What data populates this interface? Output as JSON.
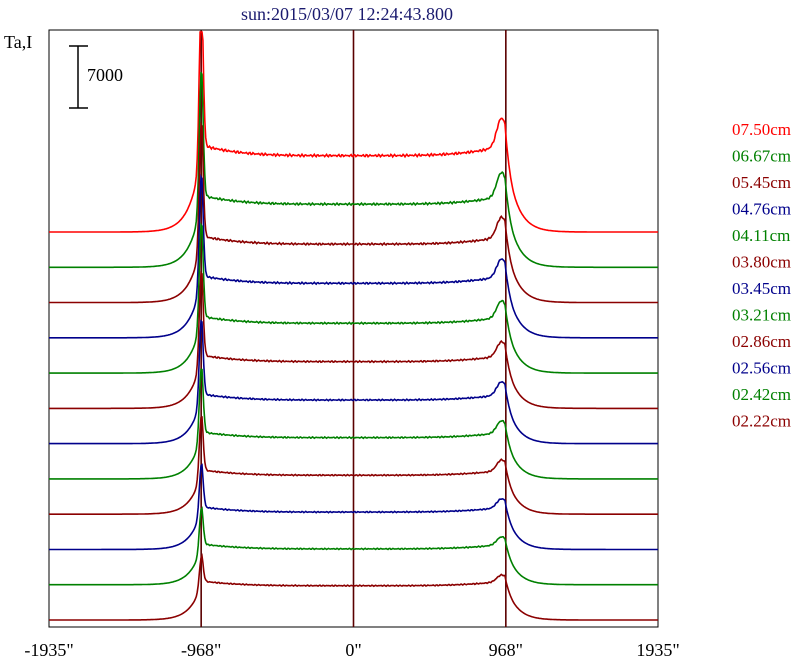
{
  "chart_data": {
    "type": "line",
    "title": "sun:2015/03/07 12:24:43.800",
    "ylabel": "Ta,I",
    "scale_bar_label": "7000",
    "xlim": [
      -1935,
      1935
    ],
    "x_tick_labels": [
      "-1935\"",
      "-968\"",
      "0\"",
      "968\"",
      "1935\""
    ],
    "x_ticks": [
      -1935,
      -968,
      0,
      968,
      1935
    ],
    "vertical_lines_at": [
      -968,
      0,
      968
    ],
    "series": [
      {
        "name": "07.50cm",
        "color": "#ff0000",
        "limb_peak": 28000,
        "disk_level": 9800,
        "right_peak": 12000
      },
      {
        "name": "06.67cm",
        "color": "#008000",
        "limb_peak": 23000,
        "disk_level": 8100,
        "right_peak": 10000
      },
      {
        "name": "05.45cm",
        "color": "#8b0000",
        "limb_peak": 21000,
        "disk_level": 7500,
        "right_peak": 9000
      },
      {
        "name": "04.76cm",
        "color": "#00008b",
        "limb_peak": 19000,
        "disk_level": 7000,
        "right_peak": 8300
      },
      {
        "name": "04.11cm",
        "color": "#008000",
        "limb_peak": 17500,
        "disk_level": 6400,
        "right_peak": 7600
      },
      {
        "name": "03.80cm",
        "color": "#8b0000",
        "limb_peak": 16000,
        "disk_level": 6000,
        "right_peak": 7000
      },
      {
        "name": "03.45cm",
        "color": "#00008b",
        "limb_peak": 14500,
        "disk_level": 5600,
        "right_peak": 6500
      },
      {
        "name": "03.21cm",
        "color": "#008000",
        "limb_peak": 13000,
        "disk_level": 5300,
        "right_peak": 6100
      },
      {
        "name": "02.86cm",
        "color": "#8b0000",
        "limb_peak": 11500,
        "disk_level": 5000,
        "right_peak": 5700
      },
      {
        "name": "02.56cm",
        "color": "#00008b",
        "limb_peak": 10000,
        "disk_level": 4800,
        "right_peak": 5300
      },
      {
        "name": "02.42cm",
        "color": "#008000",
        "limb_peak": 9000,
        "disk_level": 4600,
        "right_peak": 5000
      },
      {
        "name": "02.22cm",
        "color": "#8b0000",
        "limb_peak": 7500,
        "disk_level": 4400,
        "right_peak": 4700
      }
    ]
  }
}
